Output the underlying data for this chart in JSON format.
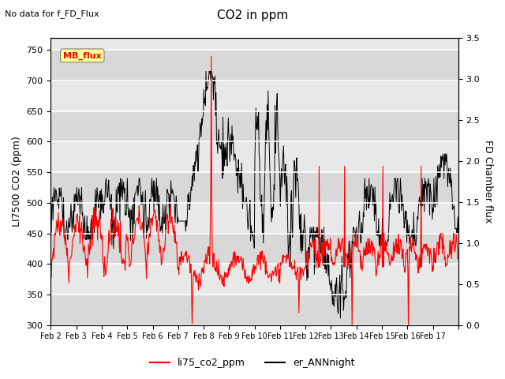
{
  "title": "CO2 in ppm",
  "subtitle": "No data for f_FD_Flux",
  "ylabel_left": "LI7500 CO2 (ppm)",
  "ylabel_right": "FD Chamber flux",
  "ylim_left": [
    300,
    770
  ],
  "ylim_right": [
    0.0,
    3.5
  ],
  "yticks_left": [
    300,
    350,
    400,
    450,
    500,
    550,
    600,
    650,
    700,
    750
  ],
  "yticks_right": [
    0.0,
    0.5,
    1.0,
    1.5,
    2.0,
    2.5,
    3.0,
    3.5
  ],
  "xticklabels": [
    "Feb 2",
    "Feb 3",
    "Feb 4",
    "Feb 5",
    "Feb 6",
    "Feb 7",
    "Feb 8",
    "Feb 9",
    "Feb 10",
    "Feb 11",
    "Feb 12",
    "Feb 13",
    "Feb 14",
    "Feb 15",
    "Feb 16",
    "Feb 17"
  ],
  "legend_labels": [
    "li75_co2_ppm",
    "er_ANNnight"
  ],
  "mb_flux_box_color": "#ffff99",
  "mb_flux_text_color": "red",
  "background_color": "#e8e8e8",
  "line_color_co2": "red",
  "line_color_er": "black",
  "grid_color": "white"
}
